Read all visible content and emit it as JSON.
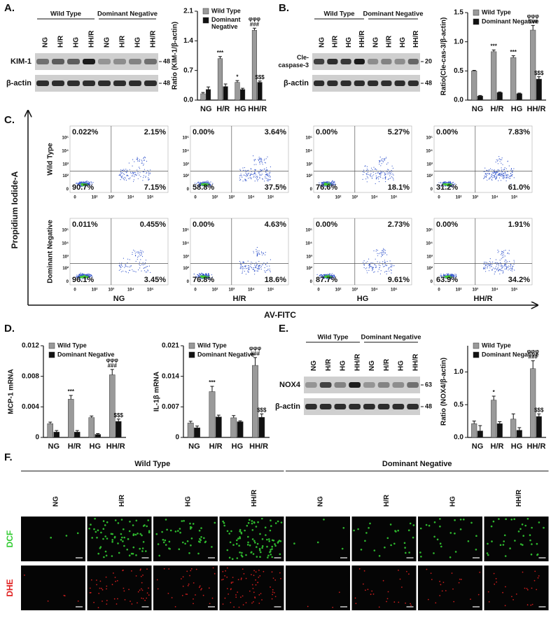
{
  "panels": [
    "A.",
    "B.",
    "C.",
    "D.",
    "E.",
    "F."
  ],
  "chart_data": [
    {
      "type": "bar",
      "y_label": "Ratio (KIM-1/β-actin)",
      "categories": [
        "NG",
        "H/R",
        "HG",
        "HH/R"
      ],
      "legend": "top",
      "ylim": [
        0,
        2.1
      ],
      "yticks": [
        {
          "value": 0,
          "label": "0.0"
        },
        0.7,
        1.4,
        2.1
      ],
      "series": [
        {
          "name": "Wild Type",
          "color": "#9a9a9a",
          "values": [
            0.15,
            0.98,
            0.42,
            1.65
          ],
          "errors": [
            0.03,
            0.05,
            0.04,
            0.05
          ],
          "annotations": [
            null,
            [
              "***"
            ],
            [
              "*"
            ],
            [
              "φφφ",
              "###"
            ]
          ]
        },
        {
          "name": "Dominant Negative",
          "color": "#111111",
          "values": [
            0.25,
            0.32,
            0.25,
            0.42
          ],
          "errors": [
            0.06,
            0.06,
            0.03,
            0.03
          ],
          "annotations": [
            null,
            null,
            null,
            [
              "$$$"
            ]
          ]
        }
      ]
    },
    {
      "type": "bar",
      "y_label": "Ratio(Cle-cas-3/β-actin)",
      "categories": [
        "NG",
        "H/R",
        "HG",
        "HH/R"
      ],
      "legend": "top",
      "ylim": [
        0,
        1.5
      ],
      "yticks": [
        {
          "value": 0,
          "label": "0.0"
        },
        0.5,
        {
          "value": 1,
          "label": "1.0"
        },
        1.5
      ],
      "series": [
        {
          "name": "Wild Type",
          "color": "#9a9a9a",
          "values": [
            0.5,
            0.83,
            0.73,
            1.2
          ],
          "errors": [
            0.01,
            0.03,
            0.03,
            0.08
          ],
          "annotations": [
            null,
            [
              "***"
            ],
            [
              "***"
            ],
            [
              "φφφ",
              "###"
            ]
          ]
        },
        {
          "name": "Dominant Negative",
          "color": "#111111",
          "values": [
            0.07,
            0.13,
            0.11,
            0.36
          ],
          "errors": [
            0.01,
            0.01,
            0.01,
            0.04
          ],
          "annotations": [
            null,
            null,
            null,
            [
              "$$$"
            ]
          ]
        }
      ]
    },
    {
      "type": "bar",
      "y_label": "MCP-1 mRNA",
      "categories": [
        "NG",
        "H/R",
        "HG",
        "HH/R"
      ],
      "legend": "top",
      "ylim": [
        0,
        0.012
      ],
      "yticks": [
        0,
        0.004,
        0.008,
        0.012
      ],
      "series": [
        {
          "name": "Wild Type",
          "color": "#9a9a9a",
          "values": [
            0.0018,
            0.005,
            0.0026,
            0.0082
          ],
          "errors": [
            0.0002,
            0.0005,
            0.0002,
            0.0007
          ],
          "annotations": [
            null,
            [
              "***"
            ],
            null,
            [
              "φφφ",
              "###"
            ]
          ]
        },
        {
          "name": "Dominant Negative",
          "color": "#111111",
          "values": [
            0.0007,
            0.0007,
            0.0004,
            0.0021
          ],
          "errors": [
            0.0002,
            0.0002,
            0.0001,
            0.0003
          ],
          "annotations": [
            null,
            null,
            null,
            [
              "$$$"
            ]
          ]
        }
      ]
    },
    {
      "type": "bar",
      "y_label": "IL-1β mRNA",
      "categories": [
        "NG",
        "H/R",
        "HG",
        "HH/R"
      ],
      "legend": "top",
      "ylim": [
        0,
        0.021
      ],
      "yticks": [
        0,
        0.007,
        0.014,
        0.021
      ],
      "series": [
        {
          "name": "Wild Type",
          "color": "#9a9a9a",
          "values": [
            0.0033,
            0.0105,
            0.0045,
            0.0165
          ],
          "errors": [
            0.0004,
            0.0012,
            0.0005,
            0.0018
          ],
          "annotations": [
            null,
            [
              "***"
            ],
            null,
            [
              "φφφ",
              "###"
            ]
          ]
        },
        {
          "name": "Dominant Negative",
          "color": "#111111",
          "values": [
            0.0022,
            0.0047,
            0.0036,
            0.0046
          ],
          "errors": [
            0.0004,
            0.0004,
            0.0002,
            0.0008
          ],
          "annotations": [
            null,
            null,
            null,
            [
              "$$$"
            ]
          ]
        }
      ]
    },
    {
      "type": "bar",
      "y_label": "Ratio (NOX4/β-actin)",
      "categories": [
        "NG",
        "H/R",
        "HG",
        "HH/R"
      ],
      "legend": "top",
      "ylim": [
        0,
        1.4
      ],
      "yticks": [
        {
          "value": 0,
          "label": "0.0"
        },
        0.5,
        {
          "value": 1,
          "label": "1.0"
        }
      ],
      "series": [
        {
          "name": "Wild Type",
          "color": "#9a9a9a",
          "values": [
            0.21,
            0.57,
            0.28,
            1.05
          ],
          "errors": [
            0.04,
            0.06,
            0.08,
            0.12
          ],
          "annotations": [
            null,
            [
              "*"
            ],
            null,
            [
              "φφφ",
              "###"
            ]
          ]
        },
        {
          "name": "Dominant Negative",
          "color": "#111111",
          "values": [
            0.1,
            0.21,
            0.11,
            0.32
          ],
          "errors": [
            0.08,
            0.03,
            0.04,
            0.04
          ],
          "annotations": [
            null,
            null,
            null,
            [
              "$$$"
            ]
          ]
        }
      ]
    }
  ],
  "blots": [
    {
      "groups": [
        "Wild Type",
        "Dominant Negative"
      ],
      "lanes": [
        "NG",
        "H/R",
        "HG",
        "HH/R",
        "NG",
        "H/R",
        "HG",
        "HH/R"
      ],
      "rows": [
        {
          "label": [
            "KIM-1"
          ],
          "mw": "48"
        },
        {
          "label": [
            "β-actin"
          ],
          "mw": "48"
        }
      ]
    },
    {
      "groups": [
        "Wild Type",
        "Dominant Negative"
      ],
      "lanes": [
        "NG",
        "H/R",
        "HG",
        "HH/R",
        "NG",
        "H/R",
        "HG",
        "HH/R"
      ],
      "rows": [
        {
          "label": [
            "Cle-",
            "caspase-3"
          ],
          "mw": "20"
        },
        {
          "label": [
            "β-actin"
          ],
          "mw": "48"
        }
      ]
    },
    {
      "groups": [
        "Wild Type",
        "Dominant Negative"
      ],
      "lanes": [
        "NG",
        "H/R",
        "HG",
        "HH/R",
        "NG",
        "H/R",
        "HG",
        "HH/R"
      ],
      "rows": [
        {
          "label": [
            "NOX4"
          ],
          "mw": "63"
        },
        {
          "label": [
            "β-actin"
          ],
          "mw": "48"
        }
      ]
    }
  ],
  "flow": {
    "y_label": "Propidium Iodide-A",
    "x_label": "AV-FITC",
    "row_labels": [
      "Wild Type",
      "Dominant Negative"
    ],
    "columns": [
      "NG",
      "H/R",
      "HG",
      "HH/R"
    ],
    "ticks": [
      "0",
      "10²",
      "10³",
      "10⁴",
      "10⁵"
    ],
    "plots": [
      [
        {
          "ul": "0.022%",
          "ur": "2.15%",
          "ll": "90.7%",
          "lr": "7.15%"
        },
        {
          "ul": "0.00%",
          "ur": "3.64%",
          "ll": "58.8%",
          "lr": "37.5%"
        },
        {
          "ul": "0.00%",
          "ur": "5.27%",
          "ll": "76.6%",
          "lr": "18.1%"
        },
        {
          "ul": "0.00%",
          "ur": "7.83%",
          "ll": "31.2%",
          "lr": "61.0%"
        }
      ],
      [
        {
          "ul": "0.011%",
          "ur": "0.455%",
          "ll": "96.1%",
          "lr": "3.45%"
        },
        {
          "ul": "0.00%",
          "ur": "4.63%",
          "ll": "76.8%",
          "lr": "18.6%"
        },
        {
          "ul": "0.00%",
          "ur": "2.73%",
          "ll": "87.7%",
          "lr": "9.61%"
        },
        {
          "ul": "0.00%",
          "ur": "1.91%",
          "ll": "63.9%",
          "lr": "34.2%"
        }
      ]
    ]
  },
  "imaging": {
    "groups": [
      "Wild Type",
      "Dominant Negative"
    ],
    "lanes": [
      "NG",
      "H/R",
      "HG",
      "HH/R",
      "NG",
      "H/R",
      "HG",
      "HH/R"
    ],
    "rows": [
      "DCF",
      "DHE"
    ]
  }
}
